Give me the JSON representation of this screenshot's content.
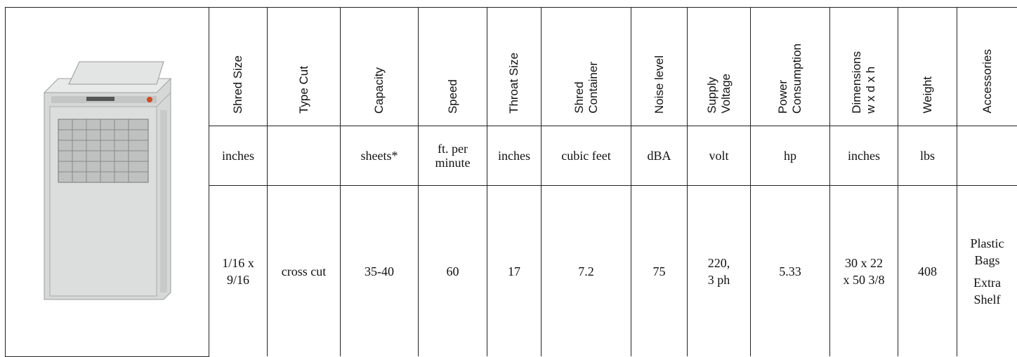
{
  "table": {
    "headers": [
      [
        "Shred Size"
      ],
      [
        "Type Cut"
      ],
      [
        "Capacity"
      ],
      [
        "Speed"
      ],
      [
        "Throat Size"
      ],
      [
        "Shred",
        "Container"
      ],
      [
        "Noise level"
      ],
      [
        "Supply",
        "Voltage"
      ],
      [
        "Power",
        "Consumption"
      ],
      [
        "Dimensions",
        "w x d x h"
      ],
      [
        "Weight"
      ],
      [
        "Accessories"
      ]
    ],
    "units": [
      "inches",
      null,
      "sheets*",
      "ft. per minute",
      "inches",
      "cubic feet",
      "dBA",
      "volt",
      "hp",
      "inches",
      "lbs",
      null
    ],
    "values": [
      [
        "1/16 x",
        "9/16"
      ],
      [
        "cross cut"
      ],
      [
        "35-40"
      ],
      [
        "60"
      ],
      [
        "17"
      ],
      [
        "7.2"
      ],
      [
        "75"
      ],
      [
        "220,",
        "3 ph"
      ],
      [
        "5.33"
      ],
      [
        "30 x 22",
        "x 50 3/8"
      ],
      [
        "408"
      ],
      [
        "Plastic Bags",
        "Extra Shelf"
      ]
    ]
  }
}
